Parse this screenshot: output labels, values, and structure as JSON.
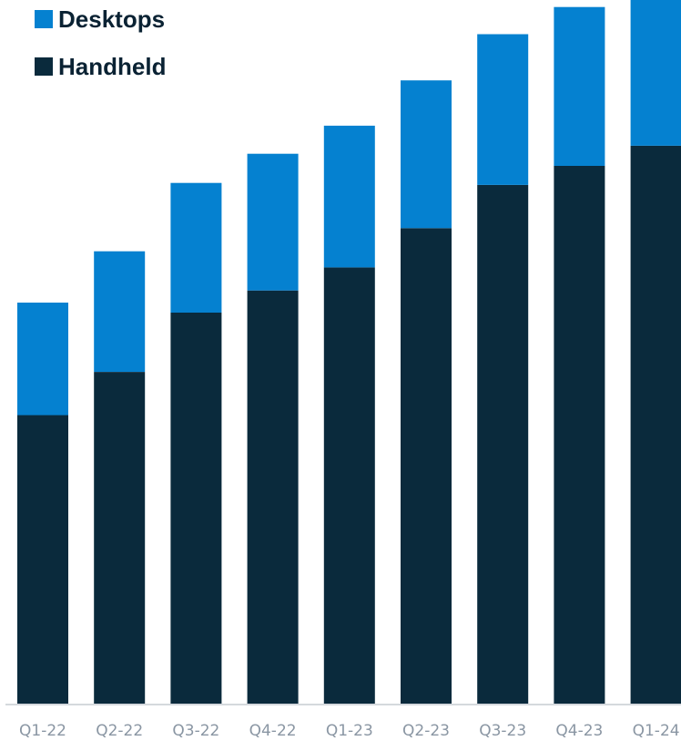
{
  "chart_data": {
    "type": "bar",
    "stacked": true,
    "categories": [
      "Q1-22",
      "Q2-22",
      "Q3-22",
      "Q4-22",
      "Q1-23",
      "Q2-23",
      "Q3-23",
      "Q4-23",
      "Q1-24"
    ],
    "series": [
      {
        "name": "Handheld",
        "color": "#0a2a3c",
        "values": [
          287,
          330,
          389,
          411,
          434,
          473,
          516,
          535,
          555
        ]
      },
      {
        "name": "Desktops",
        "color": "#0581d0",
        "values": [
          112,
          120,
          129,
          136,
          141,
          147,
          150,
          158,
          163
        ]
      }
    ],
    "legend": "top-left",
    "ylim": [
      0,
      700
    ],
    "grid": false,
    "xlabel": "",
    "ylabel": ""
  }
}
